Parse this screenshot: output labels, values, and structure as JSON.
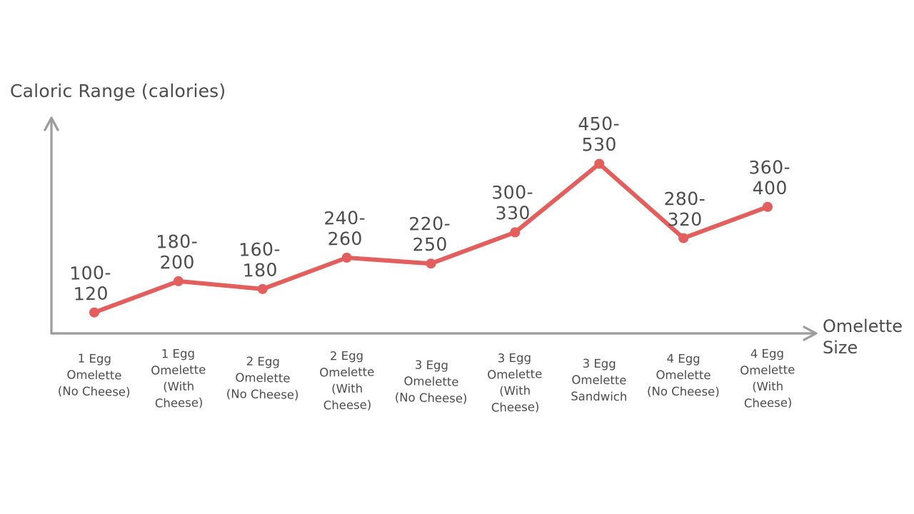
{
  "chart_data": {
    "type": "line",
    "title": "",
    "ylabel": "Caloric Range (calories)",
    "xlabel": "Omelette Size",
    "categories": [
      "1 Egg\nOmelette\n(No Cheese)",
      "1 Egg\nOmelette\n(With\nCheese)",
      "2 Egg\nOmelette\n(No Cheese)",
      "2 Egg\nOmelette\n(With\nCheese)",
      "3 Egg\nOmelette\n(No Cheese)",
      "3 Egg\nOmelette\n(With\nCheese)",
      "3 Egg\nOmelette\nSandwich",
      "4 Egg\nOmelette\n(No Cheese)",
      "4 Egg\nOmelette\n(With\nCheese)"
    ],
    "series": [
      {
        "name": "Caloric Range",
        "ranges": [
          [
            100,
            120
          ],
          [
            180,
            200
          ],
          [
            160,
            180
          ],
          [
            240,
            260
          ],
          [
            220,
            250
          ],
          [
            300,
            330
          ],
          [
            450,
            530
          ],
          [
            280,
            320
          ],
          [
            360,
            400
          ]
        ],
        "midpoints": [
          110,
          190,
          170,
          250,
          235,
          315,
          490,
          300,
          380
        ],
        "point_labels": [
          "100-\n120",
          "180-\n200",
          "160-\n180",
          "240-\n260",
          "220-\n250",
          "300-\n330",
          "450-\n530",
          "280-\n320",
          "360-\n400"
        ]
      }
    ],
    "ylim": [
      60,
      560
    ],
    "grid": false,
    "legend": false,
    "axes_style": "arrow-tipped, no tick marks, hand-drawn look",
    "colors": {
      "line": "#e25f5e",
      "point": "#e25f5e",
      "axis": "#9c9c9c",
      "text": "#4d4d4d",
      "background": "#ffffff"
    }
  }
}
